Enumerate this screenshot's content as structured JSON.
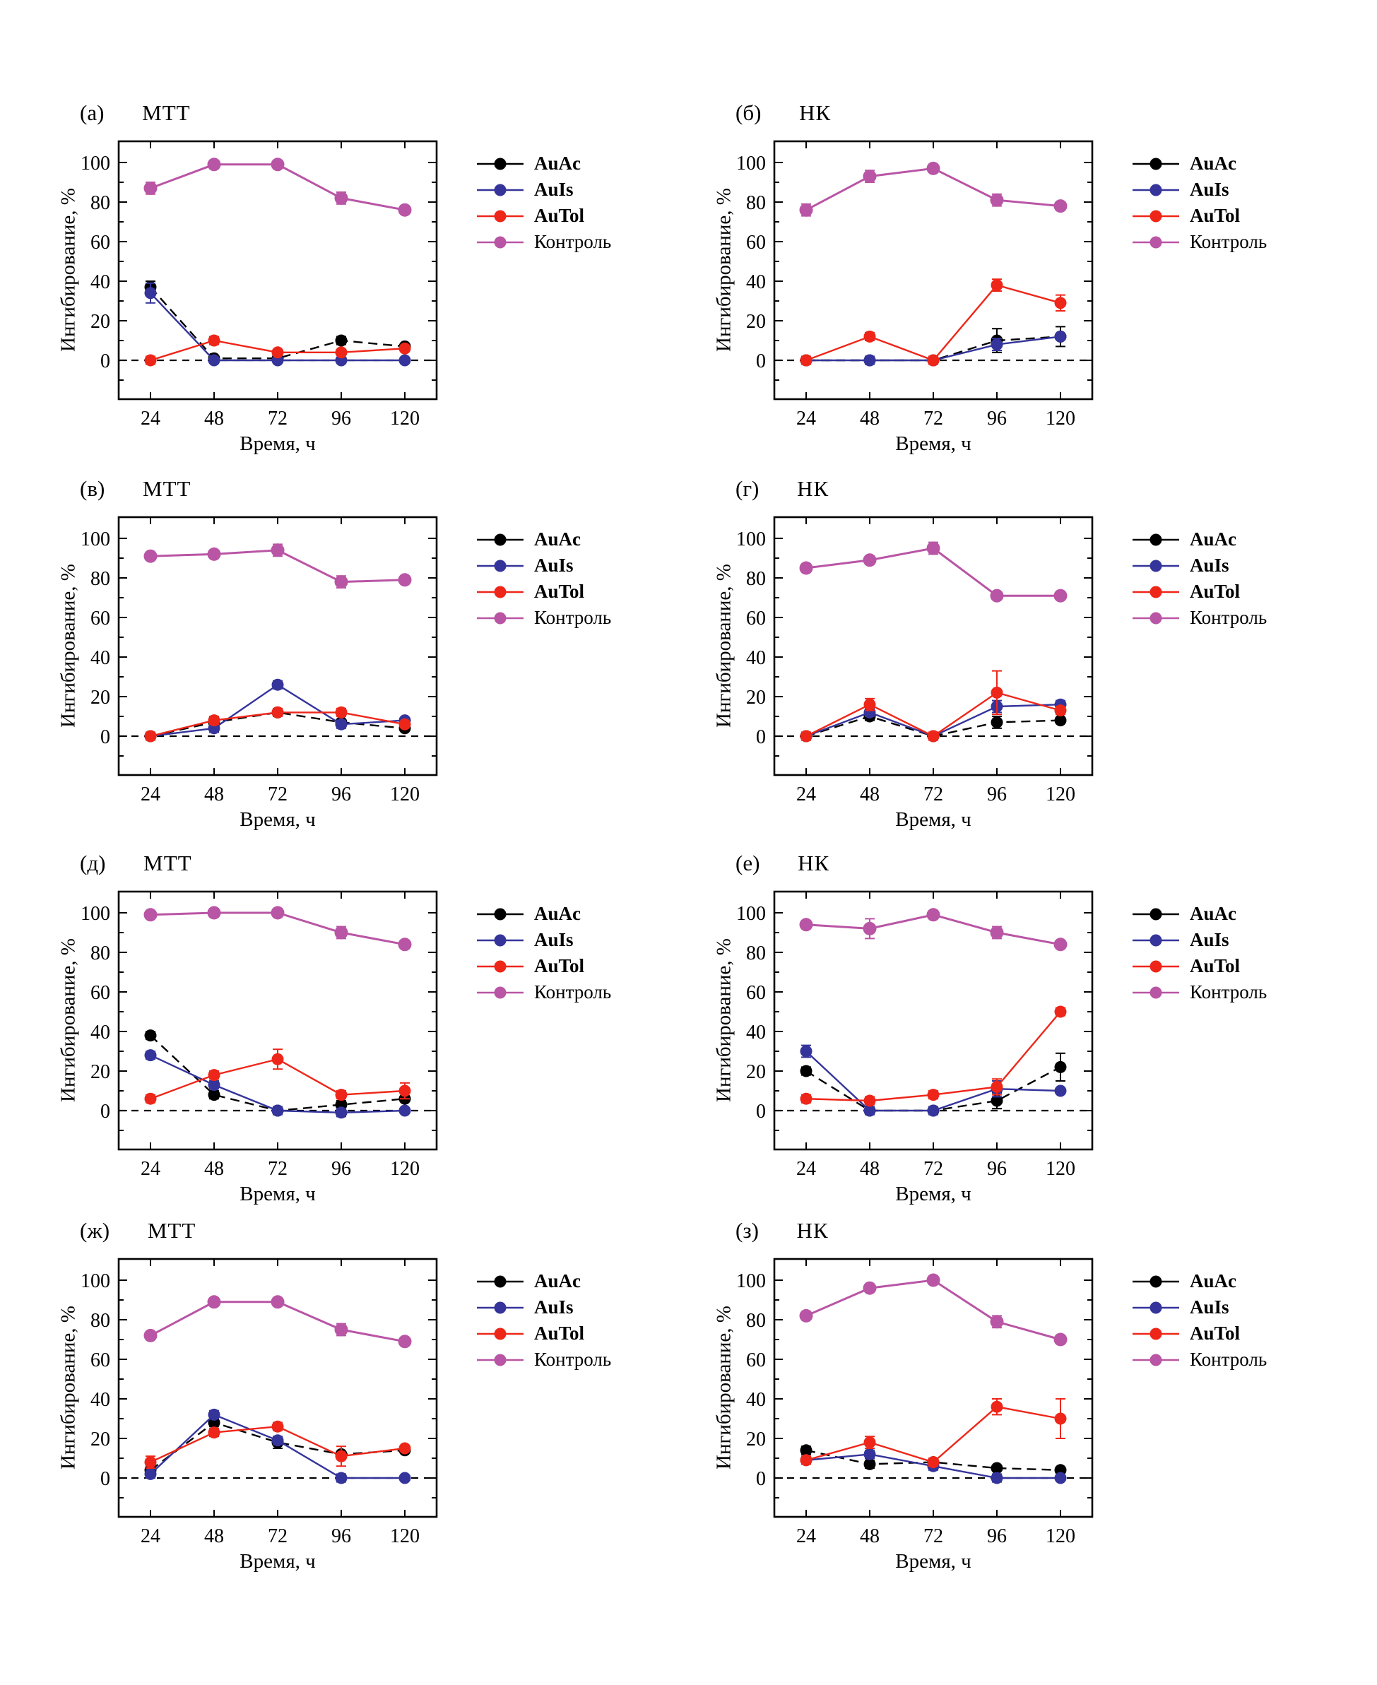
{
  "figure": {
    "y_axis_label": "Ингибирование, %",
    "x_axis_label": "Время, ч",
    "x_ticks": [
      24,
      48,
      72,
      96,
      120
    ],
    "y_ticks": [
      0,
      20,
      40,
      60,
      80,
      100
    ],
    "ylim": [
      -20,
      110
    ],
    "series_meta": [
      {
        "name": "AuAc",
        "color": "#000000",
        "dashed": true
      },
      {
        "name": "AuIs",
        "color": "#34349B",
        "dashed": false
      },
      {
        "name": "AuTol",
        "color": "#EE2619",
        "dashed": false
      },
      {
        "name": "Контроль",
        "color": "#B955A5",
        "dashed": false
      }
    ]
  },
  "chart_data": [
    {
      "type": "line",
      "panel_label": "(а)",
      "title": "МТТ",
      "x": [
        24,
        48,
        72,
        96,
        120
      ],
      "xlabel": "Время, ч",
      "ylabel": "Ингибирование, %",
      "ylim": [
        -20,
        110
      ],
      "legend_position": "right",
      "grid": false,
      "series": [
        {
          "name": "AuAc",
          "values": [
            37,
            1,
            1,
            10,
            7
          ],
          "err": [
            3,
            0,
            0,
            2,
            0
          ]
        },
        {
          "name": "AuIs",
          "values": [
            34,
            0,
            0,
            0,
            0
          ],
          "err": [
            5,
            0,
            0,
            0,
            0
          ]
        },
        {
          "name": "AuTol",
          "values": [
            0,
            10,
            4,
            4,
            6
          ],
          "err": [
            2,
            2,
            0,
            0,
            0
          ]
        },
        {
          "name": "Контроль",
          "values": [
            87,
            99,
            99,
            82,
            76
          ],
          "err": [
            3,
            2,
            2,
            3,
            2
          ]
        }
      ]
    },
    {
      "type": "line",
      "panel_label": "(б)",
      "title": "НК",
      "x": [
        24,
        48,
        72,
        96,
        120
      ],
      "xlabel": "Время, ч",
      "ylabel": "Ингибирование, %",
      "ylim": [
        -20,
        110
      ],
      "legend_position": "right",
      "grid": false,
      "series": [
        {
          "name": "AuAc",
          "values": [
            0,
            0,
            0,
            10,
            12
          ],
          "err": [
            0,
            0,
            0,
            6,
            5
          ]
        },
        {
          "name": "AuIs",
          "values": [
            0,
            0,
            0,
            8,
            12
          ],
          "err": [
            0,
            2,
            0,
            3,
            0
          ]
        },
        {
          "name": "AuTol",
          "values": [
            0,
            12,
            0,
            38,
            29
          ],
          "err": [
            2,
            2,
            2,
            3,
            4
          ]
        },
        {
          "name": "Контроль",
          "values": [
            76,
            93,
            97,
            81,
            78
          ],
          "err": [
            3,
            3,
            2,
            3,
            2
          ]
        }
      ]
    },
    {
      "type": "line",
      "panel_label": "(в)",
      "title": "МТТ",
      "x": [
        24,
        48,
        72,
        96,
        120
      ],
      "xlabel": "Время, ч",
      "ylabel": "Ингибирование, %",
      "ylim": [
        -20,
        110
      ],
      "legend_position": "right",
      "grid": false,
      "series": [
        {
          "name": "AuAc",
          "values": [
            0,
            7,
            12,
            7,
            4
          ],
          "err": [
            0,
            0,
            0,
            0,
            0
          ]
        },
        {
          "name": "AuIs",
          "values": [
            0,
            4,
            26,
            6,
            8
          ],
          "err": [
            0,
            2,
            2,
            2,
            0
          ]
        },
        {
          "name": "AuTol",
          "values": [
            0,
            8,
            12,
            12,
            6
          ],
          "err": [
            2,
            2,
            2,
            2,
            0
          ]
        },
        {
          "name": "Контроль",
          "values": [
            91,
            92,
            94,
            78,
            79
          ],
          "err": [
            2,
            2,
            3,
            3,
            2
          ]
        }
      ]
    },
    {
      "type": "line",
      "panel_label": "(г)",
      "title": "НК",
      "x": [
        24,
        48,
        72,
        96,
        120
      ],
      "xlabel": "Время, ч",
      "ylabel": "Ингибирование, %",
      "ylim": [
        -20,
        110
      ],
      "legend_position": "right",
      "grid": false,
      "series": [
        {
          "name": "AuAc",
          "values": [
            0,
            10,
            0,
            7,
            8
          ],
          "err": [
            0,
            2,
            0,
            3,
            0
          ]
        },
        {
          "name": "AuIs",
          "values": [
            0,
            12,
            0,
            15,
            16
          ],
          "err": [
            0,
            2,
            0,
            3,
            2
          ]
        },
        {
          "name": "AuTol",
          "values": [
            0,
            16,
            0,
            22,
            13
          ],
          "err": [
            2,
            3,
            2,
            11,
            2
          ]
        },
        {
          "name": "Контроль",
          "values": [
            85,
            89,
            95,
            71,
            71
          ],
          "err": [
            2,
            2,
            3,
            2,
            2
          ]
        }
      ]
    },
    {
      "type": "line",
      "panel_label": "(д)",
      "title": "МТТ",
      "x": [
        24,
        48,
        72,
        96,
        120
      ],
      "xlabel": "Время, ч",
      "ylabel": "Ингибирование, %",
      "ylim": [
        -20,
        110
      ],
      "legend_position": "right",
      "grid": false,
      "series": [
        {
          "name": "AuAc",
          "values": [
            38,
            8,
            0,
            3,
            6
          ],
          "err": [
            2,
            2,
            0,
            2,
            0
          ]
        },
        {
          "name": "AuIs",
          "values": [
            28,
            13,
            0,
            -1,
            0
          ],
          "err": [
            2,
            2,
            2,
            2,
            0
          ]
        },
        {
          "name": "AuTol",
          "values": [
            6,
            18,
            26,
            8,
            10
          ],
          "err": [
            2,
            2,
            5,
            2,
            4
          ]
        },
        {
          "name": "Контроль",
          "values": [
            99,
            100,
            100,
            90,
            84
          ],
          "err": [
            2,
            2,
            2,
            3,
            2
          ]
        }
      ]
    },
    {
      "type": "line",
      "panel_label": "(е)",
      "title": "НК",
      "x": [
        24,
        48,
        72,
        96,
        120
      ],
      "xlabel": "Время, ч",
      "ylabel": "Ингибирование, %",
      "ylim": [
        -20,
        110
      ],
      "legend_position": "right",
      "grid": false,
      "series": [
        {
          "name": "AuAc",
          "values": [
            20,
            0,
            0,
            5,
            22
          ],
          "err": [
            2,
            0,
            0,
            4,
            7
          ]
        },
        {
          "name": "AuIs",
          "values": [
            30,
            0,
            0,
            11,
            10
          ],
          "err": [
            3,
            2,
            2,
            4,
            0
          ]
        },
        {
          "name": "AuTol",
          "values": [
            6,
            5,
            8,
            12,
            50
          ],
          "err": [
            2,
            2,
            2,
            4,
            2
          ]
        },
        {
          "name": "Контроль",
          "values": [
            94,
            92,
            99,
            90,
            84
          ],
          "err": [
            2,
            5,
            2,
            3,
            2
          ]
        }
      ]
    },
    {
      "type": "line",
      "panel_label": "(ж)",
      "title": "МТТ",
      "x": [
        24,
        48,
        72,
        96,
        120
      ],
      "xlabel": "Время, ч",
      "ylabel": "Ингибирование, %",
      "ylim": [
        -20,
        110
      ],
      "legend_position": "right",
      "grid": false,
      "series": [
        {
          "name": "AuAc",
          "values": [
            4,
            28,
            18,
            12,
            14
          ],
          "err": [
            2,
            2,
            3,
            0,
            0
          ]
        },
        {
          "name": "AuIs",
          "values": [
            2,
            32,
            19,
            0,
            0
          ],
          "err": [
            2,
            2,
            2,
            2,
            0
          ]
        },
        {
          "name": "AuTol",
          "values": [
            8,
            23,
            26,
            11,
            15
          ],
          "err": [
            3,
            2,
            2,
            5,
            0
          ]
        },
        {
          "name": "Контроль",
          "values": [
            72,
            89,
            89,
            75,
            69
          ],
          "err": [
            2,
            2,
            2,
            3,
            2
          ]
        }
      ]
    },
    {
      "type": "line",
      "panel_label": "(з)",
      "title": "НК",
      "x": [
        24,
        48,
        72,
        96,
        120
      ],
      "xlabel": "Время, ч",
      "ylabel": "Ингибирование, %",
      "ylim": [
        -20,
        110
      ],
      "legend_position": "right",
      "grid": false,
      "series": [
        {
          "name": "AuAc",
          "values": [
            14,
            7,
            8,
            5,
            4
          ],
          "err": [
            2,
            2,
            2,
            1,
            1
          ]
        },
        {
          "name": "AuIs",
          "values": [
            9,
            12,
            6,
            0,
            0
          ],
          "err": [
            2,
            2,
            2,
            2,
            1
          ]
        },
        {
          "name": "AuTol",
          "values": [
            9,
            18,
            8,
            36,
            30
          ],
          "err": [
            2,
            3,
            2,
            4,
            10
          ]
        },
        {
          "name": "Контроль",
          "values": [
            82,
            96,
            100,
            79,
            70
          ],
          "err": [
            2,
            2,
            1,
            3,
            2
          ]
        }
      ]
    }
  ]
}
